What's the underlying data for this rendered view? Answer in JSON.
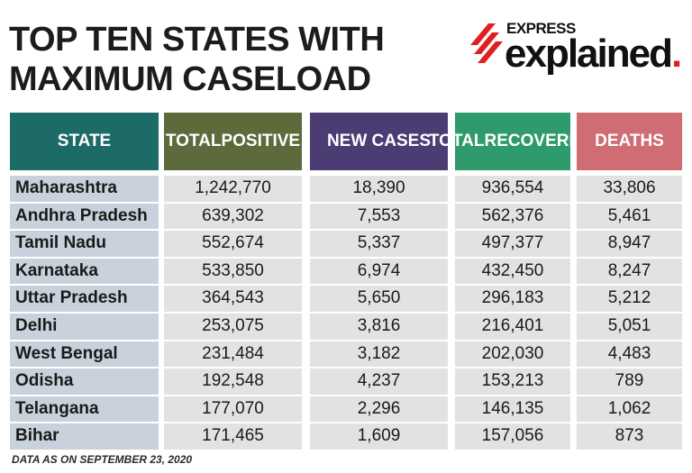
{
  "title_lines": [
    "TOP TEN STATES WITH",
    "MAXIMUM CASELOAD"
  ],
  "logo": {
    "top_text": "EXPRESS",
    "main_text": "explained",
    "dot": ".",
    "accent_color": "#e02020"
  },
  "footnote": "DATA AS ON SEPTEMBER 23, 2020",
  "chart_data": {
    "type": "table",
    "columns": [
      "STATE",
      "TOTAL POSITIVE",
      "NEW CASES",
      "TOTAL RECOVERIES",
      "DEATHS"
    ],
    "header_colors": [
      "#1d6b66",
      "#5d6b3c",
      "#4b3d73",
      "#2f9a6c",
      "#d06c74"
    ],
    "rows": [
      [
        "Maharashtra",
        "1,242,770",
        "18,390",
        "936,554",
        "33,806"
      ],
      [
        "Andhra Pradesh",
        "639,302",
        "7,553",
        "562,376",
        "5,461"
      ],
      [
        "Tamil Nadu",
        "552,674",
        "5,337",
        "497,377",
        "8,947"
      ],
      [
        "Karnataka",
        "533,850",
        "6,974",
        "432,450",
        "8,247"
      ],
      [
        "Uttar Pradesh",
        "364,543",
        "5,650",
        "296,183",
        "5,212"
      ],
      [
        "Delhi",
        "253,075",
        "3,816",
        "216,401",
        "5,051"
      ],
      [
        "West Bengal",
        "231,484",
        "3,182",
        "202,030",
        "4,483"
      ],
      [
        "Odisha",
        "192,548",
        "4,237",
        "153,213",
        "789"
      ],
      [
        "Telangana",
        "177,070",
        "2,296",
        "146,135",
        "1,062"
      ],
      [
        "Bihar",
        "171,465",
        "1,609",
        "157,056",
        "873"
      ]
    ]
  }
}
